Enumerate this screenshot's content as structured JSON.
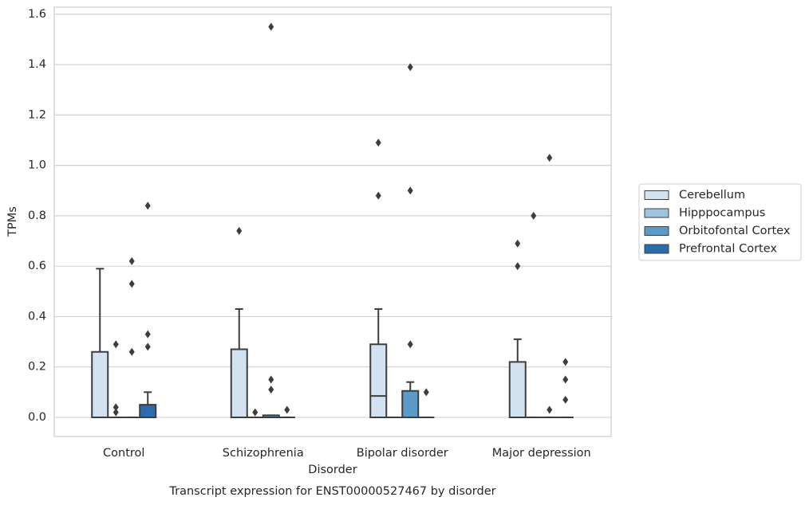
{
  "chart_data": {
    "type": "boxplot",
    "title": "Transcript expression for ENST00000527467 by disorder",
    "x_label": "Disorder",
    "y_label": "TPMs",
    "categories": [
      "Control",
      "Schizophrenia",
      "Bipolar disorder",
      "Major depression"
    ],
    "ylim": [
      -0.076,
      1.628
    ],
    "yticks": [
      {
        "value": 0,
        "label": "0.0"
      },
      0.2,
      0.4,
      0.6,
      0.8,
      {
        "value": 1,
        "label": "1.0"
      },
      1.2,
      1.4,
      1.6
    ],
    "grid": true,
    "legend": "right",
    "series": [
      {
        "name": "Cerebellum",
        "color": "#d3e2f1",
        "boxes": [
          {
            "min": 0,
            "q1": 0,
            "median": 0,
            "q3": 0.26,
            "max": 0.59,
            "outliers": []
          },
          {
            "min": 0,
            "q1": 0,
            "median": 0,
            "q3": 0.27,
            "max": 0.43,
            "outliers": [
              0.74
            ]
          },
          {
            "min": 0,
            "q1": 0,
            "median": 0.085,
            "q3": 0.29,
            "max": 0.43,
            "outliers": [
              1.09,
              0.88
            ]
          },
          {
            "min": 0,
            "q1": 0,
            "median": 0,
            "q3": 0.22,
            "max": 0.31,
            "outliers": [
              0.69,
              0.6
            ]
          }
        ]
      },
      {
        "name": "Hipppocampus",
        "color": "#9fc5de",
        "boxes": [
          {
            "min": 0,
            "q1": 0,
            "median": 0,
            "q3": 0,
            "max": 0,
            "outliers": [
              0.29,
              0.04,
              0.02
            ]
          },
          {
            "min": 0,
            "q1": 0,
            "median": 0,
            "q3": 0,
            "max": 0,
            "outliers": [
              0.02
            ]
          },
          {
            "min": 0,
            "q1": 0,
            "median": 0,
            "q3": 0,
            "max": 0,
            "outliers": []
          },
          {
            "min": 0,
            "q1": 0,
            "median": 0,
            "q3": 0,
            "max": 0,
            "outliers": [
              0.8
            ]
          }
        ]
      },
      {
        "name": "Orbitofontal Cortex",
        "color": "#5a9bc7",
        "boxes": [
          {
            "min": 0,
            "q1": 0,
            "median": 0,
            "q3": 0,
            "max": 0,
            "outliers": [
              0.62,
              0.53,
              0.26
            ]
          },
          {
            "min": 0,
            "q1": 0,
            "median": 0,
            "q3": 0.008,
            "max": 0.008,
            "outliers": [
              1.55,
              0.15,
              0.11
            ]
          },
          {
            "min": 0,
            "q1": 0,
            "median": 0,
            "q3": 0.105,
            "max": 0.14,
            "outliers": [
              1.39,
              0.9,
              0.29
            ]
          },
          {
            "min": 0,
            "q1": 0,
            "median": 0,
            "q3": 0,
            "max": 0,
            "outliers": [
              1.03,
              0.03
            ]
          }
        ]
      },
      {
        "name": "Prefrontal Cortex",
        "color": "#2b6cad",
        "boxes": [
          {
            "min": 0,
            "q1": 0,
            "median": 0,
            "q3": 0.05,
            "max": 0.1,
            "outliers": [
              0.84,
              0.33,
              0.28
            ]
          },
          {
            "min": 0,
            "q1": 0,
            "median": 0,
            "q3": 0,
            "max": 0,
            "outliers": [
              0.03
            ]
          },
          {
            "min": 0,
            "q1": 0,
            "median": 0,
            "q3": 0,
            "max": 0,
            "outliers": [
              0.1
            ]
          },
          {
            "min": 0,
            "q1": 0,
            "median": 0,
            "q3": 0,
            "max": 0,
            "outliers": [
              0.22,
              0.15,
              0.07
            ]
          }
        ]
      }
    ]
  }
}
